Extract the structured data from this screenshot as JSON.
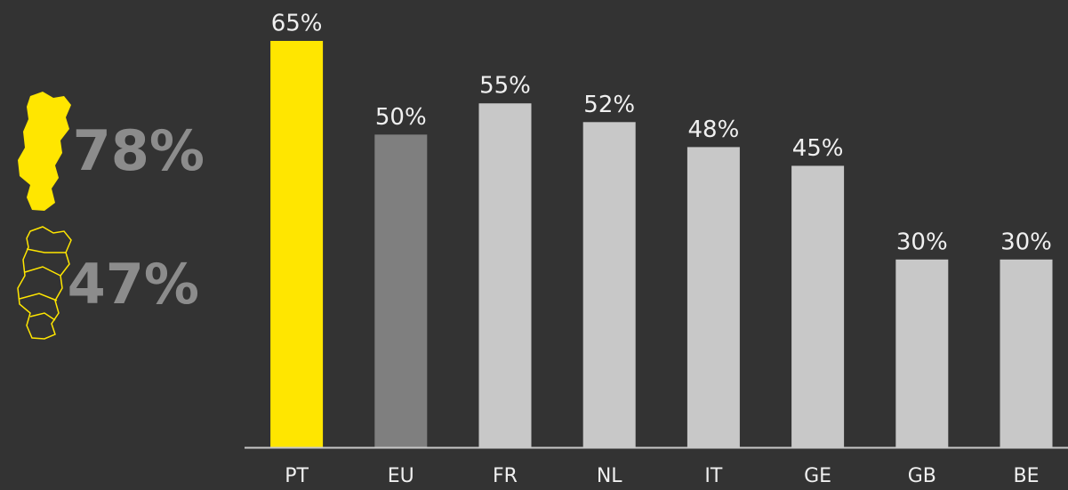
{
  "stats": [
    "78%",
    "47%"
  ],
  "chart_data": {
    "type": "bar",
    "categories": [
      "PT",
      "EU",
      "FR",
      "NL",
      "IT",
      "GE",
      "GB",
      "BE"
    ],
    "values": [
      65,
      50,
      55,
      52,
      48,
      45,
      30,
      30
    ],
    "value_labels": [
      "65%",
      "50%",
      "55%",
      "52%",
      "48%",
      "45%",
      "30%",
      "30%"
    ],
    "colors": [
      "#ffe600",
      "#7f7f7f",
      "#c8c8c8",
      "#c8c8c8",
      "#c8c8c8",
      "#c8c8c8",
      "#c8c8c8",
      "#c8c8c8"
    ],
    "ylim": [
      0,
      65
    ]
  }
}
